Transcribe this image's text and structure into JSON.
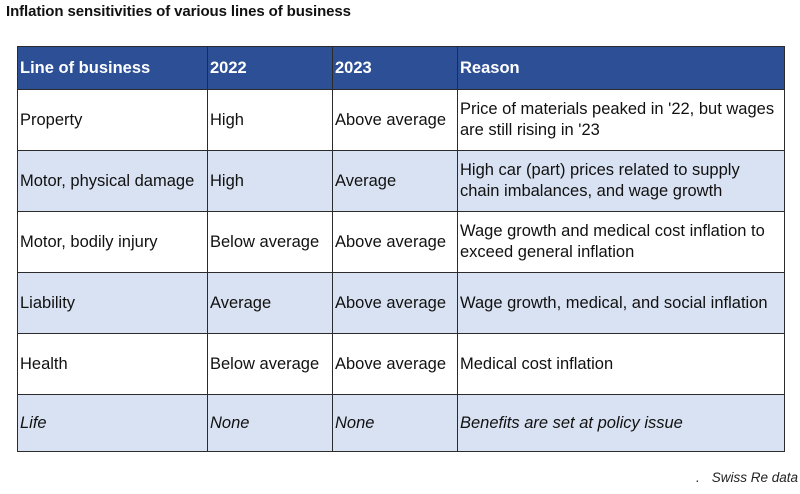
{
  "title": "Inflation sensitivities of various lines of business",
  "table": {
    "headers": [
      "Line of business",
      "2022",
      "2023",
      "Reason"
    ],
    "rows": [
      {
        "line": "Property",
        "y2022": "High",
        "y2023": "Above average",
        "reason": "Price of materials peaked in '22, but wages are still rising in '23"
      },
      {
        "line": "Motor, physical damage",
        "y2022": "High",
        "y2023": "Average",
        "reason": "High car (part) prices related to supply chain imbalances, and wage growth"
      },
      {
        "line": "Motor, bodily injury",
        "y2022": "Below average",
        "y2023": "Above average",
        "reason": "Wage growth and medical cost inflation to exceed general inflation"
      },
      {
        "line": "Liability",
        "y2022": "Average",
        "y2023": "Above average",
        "reason": "Wage growth, medical, and social inflation"
      },
      {
        "line": "Health",
        "y2022": "Below average",
        "y2023": "Above average",
        "reason": "Medical cost inflation"
      },
      {
        "line": "Life",
        "y2022": "None",
        "y2023": "None",
        "reason": "Benefits are set at policy issue"
      }
    ]
  },
  "footer": {
    "marker": ".",
    "source": "Swiss Re data"
  },
  "colors": {
    "header_bg": "#2c4f96",
    "alt_row_bg": "#d9e2f2",
    "border": "#2b2b2b"
  }
}
